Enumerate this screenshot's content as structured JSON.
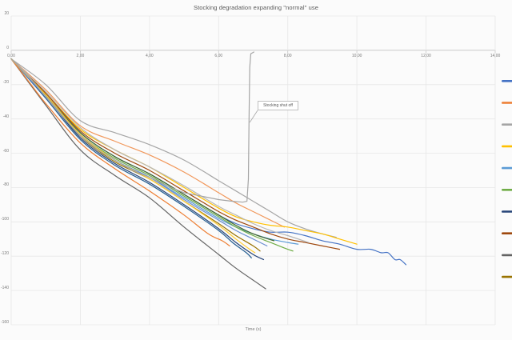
{
  "chart_data": {
    "type": "line",
    "title": "Stocking degradation expanding \"normal\" use",
    "xlabel": "Time (s)",
    "ylabel": "",
    "xlim": [
      0,
      14
    ],
    "ylim": [
      -160,
      20
    ],
    "x_tick_labels": [
      "0,00",
      "2,00",
      "4,00",
      "6,00",
      "8,00",
      "10,00",
      "12,00",
      "14,00"
    ],
    "y_tick_labels": [
      "20",
      "0",
      "-20",
      "-40",
      "-60",
      "-80",
      "-100",
      "-120",
      "-140",
      "-160"
    ],
    "grid": true,
    "annotation": {
      "text": "Stocking shut off",
      "points_to": {
        "x": 6.9,
        "y": -42
      }
    },
    "legend": {
      "position": "right",
      "cut_off_by_image_edge": true,
      "labels_visible": false,
      "marker_colors": [
        "#4472C4",
        "#ED7D31",
        "#A5A5A5",
        "#FFC000",
        "#5B9BD5",
        "#70AD47",
        "#264478",
        "#9E480E",
        "#636363",
        "#997300"
      ]
    },
    "series": [
      {
        "id": "line-01",
        "color": "#4472C4",
        "smooth": true,
        "points": [
          [
            0,
            -5
          ],
          [
            1,
            -26
          ],
          [
            2,
            -48
          ],
          [
            3,
            -62
          ],
          [
            4,
            -72
          ],
          [
            5,
            -84
          ],
          [
            6,
            -96
          ],
          [
            6.5,
            -101
          ],
          [
            7,
            -104
          ],
          [
            7.5,
            -106
          ],
          [
            8,
            -106
          ],
          [
            8.5,
            -108
          ],
          [
            9,
            -111
          ],
          [
            9.5,
            -113
          ],
          [
            10,
            -116
          ],
          [
            10.4,
            -116
          ],
          [
            10.7,
            -118
          ],
          [
            10.9,
            -118
          ],
          [
            11.1,
            -122
          ],
          [
            11.25,
            -122
          ],
          [
            11.42,
            -125
          ]
        ]
      },
      {
        "id": "line-02",
        "color": "#F1975A",
        "smooth": true,
        "points": [
          [
            0,
            -5
          ],
          [
            1,
            -23
          ],
          [
            2,
            -44
          ],
          [
            3,
            -53
          ],
          [
            4,
            -61
          ],
          [
            5,
            -71
          ],
          [
            6,
            -83
          ],
          [
            6.5,
            -89
          ],
          [
            7,
            -94
          ],
          [
            7.5,
            -99
          ],
          [
            7.9,
            -103
          ]
        ]
      },
      {
        "id": "line-03",
        "color": "#A5A5A5",
        "smooth": true,
        "points": [
          [
            0,
            -5
          ],
          [
            1,
            -20
          ],
          [
            2,
            -41
          ],
          [
            3,
            -48
          ],
          [
            4,
            -55
          ],
          [
            5,
            -64
          ],
          [
            6,
            -76
          ],
          [
            6.5,
            -82
          ],
          [
            7,
            -88
          ],
          [
            7.5,
            -94
          ],
          [
            8,
            -100
          ],
          [
            8.5,
            -104
          ],
          [
            9,
            -107
          ],
          [
            9.4,
            -109
          ]
        ]
      },
      {
        "id": "line-04",
        "color": "#FFC000",
        "smooth": true,
        "points": [
          [
            0,
            -5
          ],
          [
            1,
            -25
          ],
          [
            2,
            -46
          ],
          [
            3,
            -58
          ],
          [
            4,
            -68
          ],
          [
            5,
            -80
          ],
          [
            6,
            -92
          ],
          [
            6.5,
            -97
          ],
          [
            7,
            -100
          ],
          [
            7.5,
            -102
          ],
          [
            8,
            -103
          ],
          [
            8.5,
            -105
          ],
          [
            9,
            -107
          ],
          [
            9.5,
            -110
          ],
          [
            10,
            -113
          ]
        ]
      },
      {
        "id": "line-05",
        "color": "#5B9BD5",
        "smooth": true,
        "points": [
          [
            0,
            -5
          ],
          [
            1,
            -27
          ],
          [
            2,
            -50
          ],
          [
            3,
            -64
          ],
          [
            4,
            -74
          ],
          [
            5,
            -86
          ],
          [
            6,
            -98
          ],
          [
            6.5,
            -103
          ],
          [
            7,
            -107
          ],
          [
            7.5,
            -110
          ],
          [
            8,
            -112
          ],
          [
            8.3,
            -113
          ]
        ]
      },
      {
        "id": "line-06",
        "color": "#70AD47",
        "smooth": true,
        "points": [
          [
            0,
            -5
          ],
          [
            1,
            -26
          ],
          [
            2,
            -49
          ],
          [
            3,
            -63
          ],
          [
            4,
            -73
          ],
          [
            5,
            -85
          ],
          [
            6,
            -97
          ],
          [
            6.5,
            -103
          ],
          [
            7,
            -108
          ],
          [
            7.5,
            -112
          ],
          [
            8,
            -116
          ],
          [
            8.15,
            -117
          ]
        ]
      },
      {
        "id": "line-07",
        "color": "#264478",
        "smooth": true,
        "points": [
          [
            0,
            -5
          ],
          [
            1,
            -27
          ],
          [
            2,
            -51
          ],
          [
            3,
            -66
          ],
          [
            4,
            -77
          ],
          [
            5,
            -90
          ],
          [
            6,
            -104
          ],
          [
            6.5,
            -112
          ],
          [
            7,
            -119
          ],
          [
            7.3,
            -122
          ]
        ]
      },
      {
        "id": "line-08",
        "color": "#9E480E",
        "smooth": true,
        "points": [
          [
            0,
            -5
          ],
          [
            1,
            -25
          ],
          [
            2,
            -47
          ],
          [
            3,
            -60
          ],
          [
            4,
            -70
          ],
          [
            5,
            -82
          ],
          [
            6,
            -94
          ],
          [
            6.5,
            -99
          ],
          [
            7,
            -103
          ],
          [
            7.5,
            -107
          ],
          [
            8,
            -110
          ],
          [
            8.5,
            -112
          ],
          [
            9,
            -114
          ],
          [
            9.5,
            -116
          ]
        ]
      },
      {
        "id": "line-09",
        "color": "#636363",
        "smooth": true,
        "points": [
          [
            0,
            -5
          ],
          [
            1,
            -32
          ],
          [
            2,
            -58
          ],
          [
            3,
            -73
          ],
          [
            4,
            -86
          ],
          [
            5,
            -103
          ],
          [
            6,
            -119
          ],
          [
            6.5,
            -127
          ],
          [
            7,
            -134
          ],
          [
            7.36,
            -139
          ]
        ]
      },
      {
        "id": "line-10",
        "color": "#997300",
        "smooth": true,
        "points": [
          [
            0,
            -5
          ],
          [
            1,
            -26
          ],
          [
            2,
            -50
          ],
          [
            3,
            -65
          ],
          [
            4,
            -75
          ],
          [
            5,
            -88
          ],
          [
            6,
            -101
          ],
          [
            6.5,
            -108
          ],
          [
            7,
            -114
          ],
          [
            7.2,
            -117
          ]
        ]
      },
      {
        "id": "line-11",
        "color": "#255E91",
        "smooth": true,
        "points": [
          [
            0,
            -5
          ],
          [
            1,
            -28
          ],
          [
            2,
            -52
          ],
          [
            3,
            -67
          ],
          [
            4,
            -78
          ],
          [
            5,
            -91
          ],
          [
            6,
            -105
          ],
          [
            6.4,
            -112
          ],
          [
            6.8,
            -118
          ],
          [
            6.95,
            -121
          ]
        ]
      },
      {
        "id": "line-12",
        "color": "#43682B",
        "smooth": true,
        "points": [
          [
            0,
            -5
          ],
          [
            1,
            -26
          ],
          [
            2,
            -48
          ],
          [
            3,
            -62
          ],
          [
            4,
            -72
          ],
          [
            5,
            -84
          ],
          [
            6,
            -96
          ],
          [
            6.5,
            -102
          ],
          [
            7,
            -107
          ],
          [
            7.6,
            -111
          ]
        ]
      },
      {
        "id": "line-13",
        "color": "#698ED0",
        "smooth": true,
        "points": [
          [
            0,
            -5
          ],
          [
            1,
            -27
          ],
          [
            2,
            -49
          ],
          [
            3,
            -64
          ],
          [
            4,
            -74
          ],
          [
            5,
            -87
          ],
          [
            6,
            -99
          ],
          [
            6.5,
            -105
          ],
          [
            7,
            -110
          ],
          [
            7.4,
            -114
          ]
        ]
      },
      {
        "id": "line-14",
        "color": "#ED7D31",
        "smooth": true,
        "points": [
          [
            0,
            -5
          ],
          [
            0.5,
            -18
          ],
          [
            1,
            -31
          ],
          [
            2,
            -54
          ],
          [
            3,
            -69
          ],
          [
            4,
            -82
          ],
          [
            5,
            -96
          ],
          [
            5.7,
            -107
          ],
          [
            6.1,
            -111
          ],
          [
            6.32,
            -114
          ]
        ]
      },
      {
        "id": "line-15",
        "color": "#B7B7B7",
        "smooth": true,
        "points": [
          [
            0,
            -5
          ],
          [
            1,
            -24
          ],
          [
            2,
            -45
          ],
          [
            3,
            -58
          ],
          [
            4,
            -68
          ],
          [
            5,
            -79
          ],
          [
            6,
            -91
          ],
          [
            6.5,
            -96
          ],
          [
            7,
            -101
          ],
          [
            7.5,
            -105
          ],
          [
            8,
            -108
          ],
          [
            8.6,
            -112
          ]
        ]
      },
      {
        "id": "line-16",
        "color": "#FFCD33",
        "smooth": true,
        "points": [
          [
            0,
            -5
          ],
          [
            1,
            -26
          ],
          [
            2,
            -49
          ],
          [
            3,
            -64
          ],
          [
            4,
            -75
          ],
          [
            5,
            -88
          ],
          [
            6,
            -102
          ],
          [
            6.5,
            -110
          ],
          [
            6.9,
            -116
          ],
          [
            7.05,
            -118
          ]
        ]
      },
      {
        "id": "line-17-shutoff",
        "color": "#A5A5A5",
        "smooth": false,
        "points": [
          [
            0,
            -5
          ],
          [
            0.5,
            -15
          ],
          [
            1,
            -27
          ],
          [
            1.5,
            -39
          ],
          [
            2,
            -50
          ],
          [
            2.5,
            -58
          ],
          [
            3,
            -64
          ],
          [
            3.5,
            -70
          ],
          [
            4,
            -74
          ],
          [
            4.5,
            -79
          ],
          [
            5,
            -83
          ],
          [
            5.5,
            -85
          ],
          [
            6,
            -87
          ],
          [
            6.4,
            -88
          ],
          [
            6.7,
            -88.5
          ],
          [
            6.82,
            -88
          ],
          [
            6.86,
            -75
          ],
          [
            6.88,
            -40
          ],
          [
            6.9,
            -10
          ],
          [
            6.93,
            -2
          ],
          [
            7.02,
            -1
          ]
        ]
      }
    ]
  },
  "colors": {
    "background": "#fbfbfb",
    "gridline": "#e7e7e7",
    "zero_axis": "#c9c9c9",
    "text": "#7a7a7a",
    "title_text": "#595959",
    "annotation_border": "#bfbfbf",
    "annotation_leader": "#a6a6a6"
  }
}
